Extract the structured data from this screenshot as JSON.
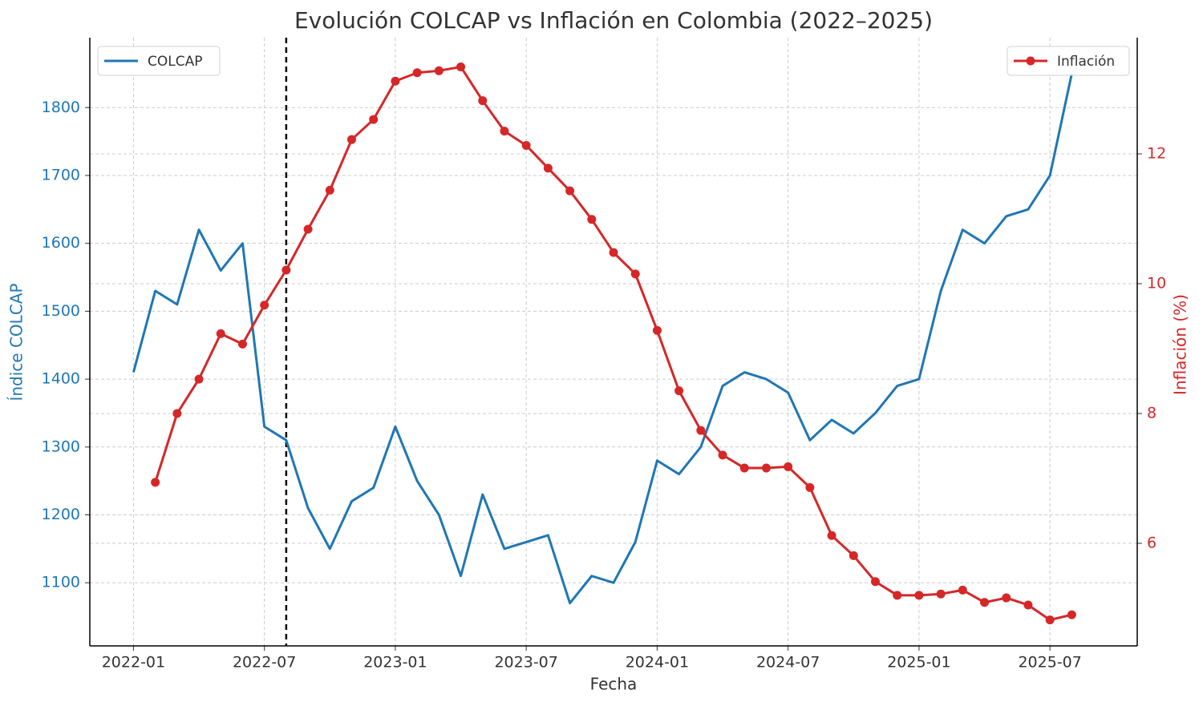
{
  "chart_data": {
    "type": "line",
    "title": "Evolución COLCAP vs Inflación en Colombia (2022–2025)",
    "x_label": "Fecha",
    "y_label": "Índice COLCAP",
    "y2_label": "Inflación (%)",
    "xlim": [
      "2021-11",
      "2025-11"
    ],
    "xticks": [
      "2022-01",
      "2022-07",
      "2023-01",
      "2023-07",
      "2024-01",
      "2024-07",
      "2025-01",
      "2025-07"
    ],
    "ylim": [
      1007,
      1903
    ],
    "yticks": [
      1100,
      1200,
      1300,
      1400,
      1500,
      1600,
      1700,
      1800
    ],
    "y2lim": [
      4.42,
      13.79
    ],
    "y2ticks": [
      6,
      8,
      10,
      12
    ],
    "grid": true,
    "vline": "2022-08",
    "series": [
      {
        "name": "COLCAP",
        "color": "#1f77b4",
        "legend": "upper left",
        "x": [
          "2022-01",
          "2022-02",
          "2022-03",
          "2022-04",
          "2022-05",
          "2022-06",
          "2022-07",
          "2022-08",
          "2022-09",
          "2022-10",
          "2022-11",
          "2022-12",
          "2023-01",
          "2023-02",
          "2023-03",
          "2023-04",
          "2023-05",
          "2023-06",
          "2023-07",
          "2023-08",
          "2023-09",
          "2023-10",
          "2023-11",
          "2023-12",
          "2024-01",
          "2024-02",
          "2024-03",
          "2024-04",
          "2024-05",
          "2024-06",
          "2024-07",
          "2024-08",
          "2024-09",
          "2024-10",
          "2024-11",
          "2024-12",
          "2025-01",
          "2025-02",
          "2025-03",
          "2025-04",
          "2025-05",
          "2025-06",
          "2025-07",
          "2025-08"
        ],
        "values": [
          1410,
          1530,
          1510,
          1620,
          1560,
          1600,
          1330,
          1310,
          1210,
          1150,
          1220,
          1240,
          1330,
          1250,
          1200,
          1110,
          1230,
          1150,
          1160,
          1170,
          1070,
          1110,
          1100,
          1160,
          1280,
          1260,
          1300,
          1390,
          1410,
          1400,
          1380,
          1310,
          1340,
          1320,
          1350,
          1390,
          1400,
          1530,
          1620,
          1600,
          1640,
          1650,
          1700,
          1850
        ]
      },
      {
        "name": "Inflación",
        "color": "#d62728",
        "axis": "y2",
        "legend": "upper right",
        "markers": true,
        "x": [
          "2022-02",
          "2022-03",
          "2022-04",
          "2022-05",
          "2022-06",
          "2022-07",
          "2022-08",
          "2022-09",
          "2022-10",
          "2022-11",
          "2022-12",
          "2023-01",
          "2023-02",
          "2023-03",
          "2023-04",
          "2023-05",
          "2023-06",
          "2023-07",
          "2023-08",
          "2023-09",
          "2023-10",
          "2023-11",
          "2023-12",
          "2024-01",
          "2024-02",
          "2024-03",
          "2024-04",
          "2024-05",
          "2024-06",
          "2024-07",
          "2024-08",
          "2024-09",
          "2024-10",
          "2024-11",
          "2024-12",
          "2025-01",
          "2025-02",
          "2025-03",
          "2025-04",
          "2025-05",
          "2025-06",
          "2025-07",
          "2025-08"
        ],
        "values": [
          6.94,
          8.0,
          8.53,
          9.23,
          9.07,
          9.67,
          10.21,
          10.84,
          11.44,
          12.22,
          12.53,
          13.12,
          13.25,
          13.28,
          13.34,
          12.82,
          12.35,
          12.13,
          11.78,
          11.43,
          10.99,
          10.48,
          10.15,
          9.28,
          8.35,
          7.74,
          7.36,
          7.16,
          7.16,
          7.18,
          6.86,
          6.12,
          5.81,
          5.41,
          5.2,
          5.2,
          5.22,
          5.28,
          5.09,
          5.16,
          5.05,
          4.82,
          4.9
        ]
      }
    ]
  }
}
